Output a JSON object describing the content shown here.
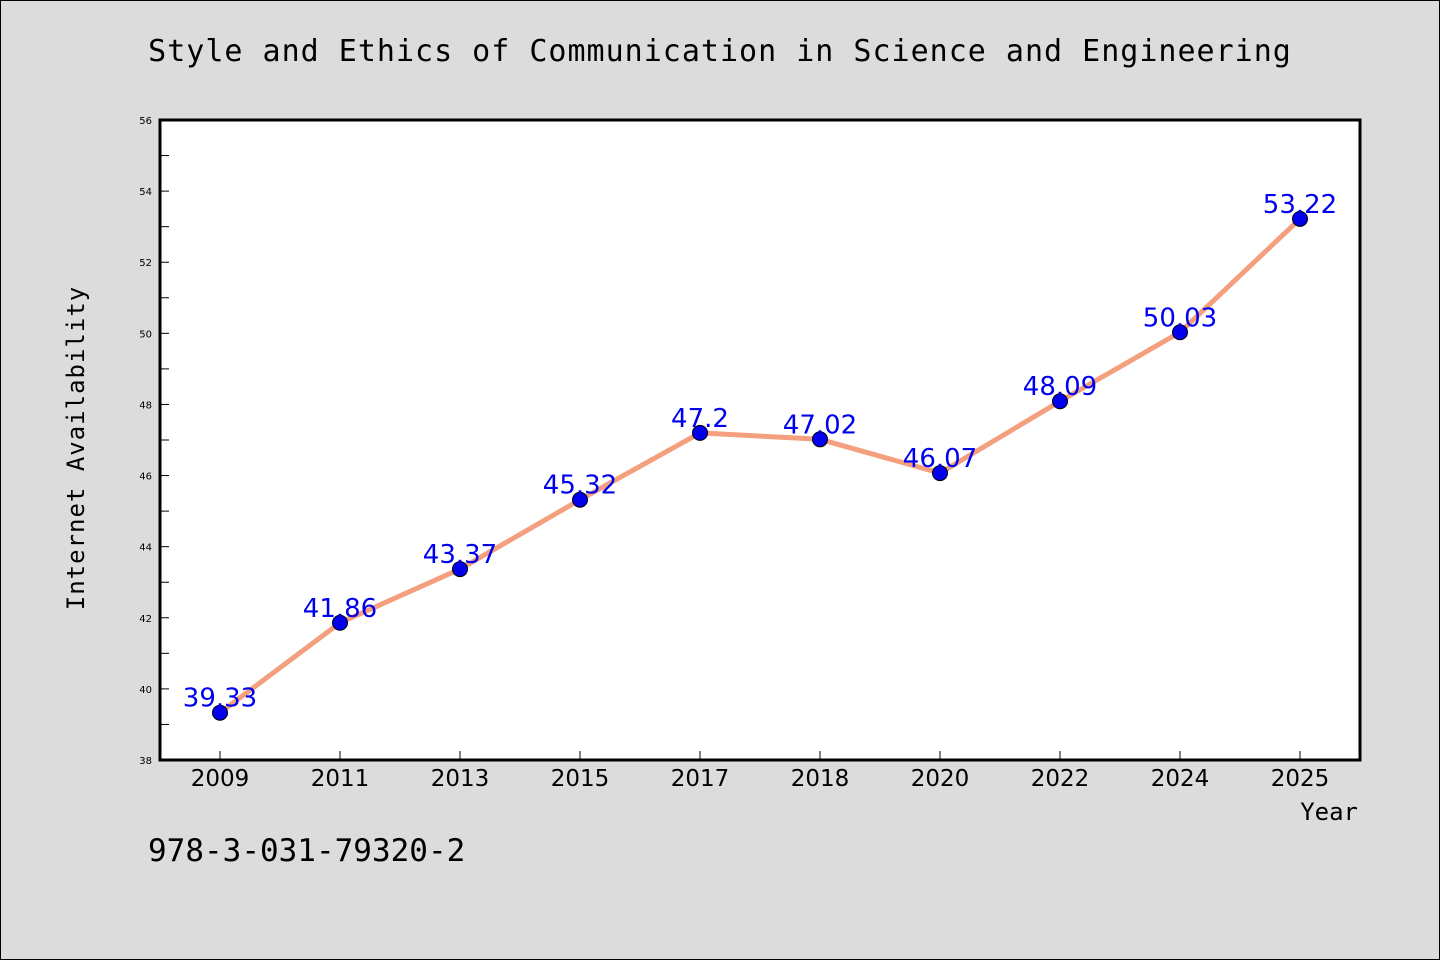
{
  "chart_data": {
    "type": "line",
    "title": "Style and Ethics of Communication in Science and Engineering",
    "xlabel": "Year",
    "ylabel": "Internet Availability",
    "categories": [
      "2009",
      "2011",
      "2013",
      "2015",
      "2017",
      "2018",
      "2020",
      "2022",
      "2024",
      "2025"
    ],
    "values": [
      39.33,
      41.86,
      43.37,
      45.32,
      47.2,
      47.02,
      46.07,
      48.09,
      50.03,
      53.22
    ],
    "data_labels": [
      "39.33",
      "41.86",
      "43.37",
      "45.32",
      "47.2",
      "47.02",
      "46.07",
      "48.09",
      "50.03",
      "53.22"
    ],
    "ylim": [
      38,
      56
    ],
    "yticks": [
      "38",
      "40",
      "42",
      "44",
      "46",
      "48",
      "50",
      "52",
      "54",
      "56"
    ],
    "grid": false,
    "line_color": "#f4a07e",
    "marker_color": "#0000ee",
    "label_color": "#0000ee"
  },
  "footer_text": "978-3-031-79320-2"
}
